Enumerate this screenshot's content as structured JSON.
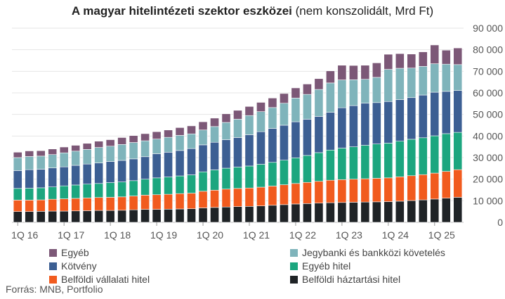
{
  "chart_data": {
    "type": "bar",
    "stacked": true,
    "title_bold": "A magyar hitelintézeti szektor eszközei",
    "title_rest": "(nem konszolidált, Mrd Ft)",
    "categories": [
      "1Q 16",
      "2Q 16",
      "3Q 16",
      "4Q 16",
      "1Q 17",
      "2Q 17",
      "3Q 17",
      "4Q 17",
      "1Q 18",
      "2Q 18",
      "3Q 18",
      "4Q 18",
      "1Q 19",
      "2Q 19",
      "3Q 19",
      "4Q 19",
      "1Q 20",
      "2Q 20",
      "3Q 20",
      "4Q 20",
      "1Q 21",
      "2Q 21",
      "3Q 21",
      "4Q 21",
      "1Q 22",
      "2Q 22",
      "3Q 22",
      "4Q 22",
      "1Q 23",
      "2Q 23",
      "3Q 23",
      "4Q 23",
      "1Q 24",
      "2Q 24",
      "3Q 24",
      "4Q 24",
      "1Q 25",
      "2Q 25",
      "3Q 25"
    ],
    "x_tick_labels": [
      "1Q 16",
      "1Q 17",
      "1Q 18",
      "1Q 19",
      "1Q 20",
      "1Q 21",
      "1Q 22",
      "1Q 23",
      "1Q 24",
      "1Q 25"
    ],
    "ylim": [
      0,
      90000
    ],
    "y_ticks": [
      "0",
      "10 000",
      "20 000",
      "30 000",
      "40 000",
      "50 000",
      "60 000",
      "70 000",
      "80 000",
      "90 000"
    ],
    "y_tick_values": [
      0,
      10000,
      20000,
      30000,
      40000,
      50000,
      60000,
      70000,
      80000,
      90000
    ],
    "y_axis_side": "right",
    "series": [
      {
        "name": "Belföldi háztartási hitel",
        "color": "#1f2326",
        "values": [
          5000,
          5000,
          5100,
          5200,
          5200,
          5300,
          5400,
          5500,
          5500,
          5600,
          5800,
          6000,
          6000,
          6100,
          6200,
          6300,
          6700,
          6900,
          7100,
          7300,
          7400,
          7600,
          7900,
          8200,
          8500,
          8700,
          8900,
          9100,
          9200,
          9300,
          9400,
          9500,
          9600,
          9800,
          10100,
          10400,
          10800,
          11200,
          11600
        ]
      },
      {
        "name": "Belföldi vállalati hitel",
        "color": "#f15b1e",
        "values": [
          5300,
          5300,
          5300,
          5500,
          5700,
          5800,
          5900,
          6000,
          6100,
          6200,
          6400,
          6600,
          6800,
          6900,
          7100,
          7200,
          7700,
          8000,
          8300,
          8400,
          8500,
          8700,
          8900,
          9200,
          9500,
          9800,
          10100,
          10400,
          10600,
          10700,
          10800,
          10900,
          11000,
          11300,
          11500,
          11700,
          12000,
          12400,
          12800
        ]
      },
      {
        "name": "Egyéb hitel",
        "color": "#1ca67f",
        "values": [
          5400,
          5500,
          5600,
          5700,
          6000,
          6200,
          6400,
          6500,
          6800,
          6900,
          7100,
          7400,
          7800,
          8000,
          8200,
          8500,
          9000,
          9400,
          9700,
          9900,
          10200,
          10600,
          11000,
          11400,
          11900,
          12500,
          13300,
          14000,
          14600,
          15000,
          15500,
          15900,
          16100,
          16500,
          16900,
          17100,
          17300,
          17500,
          17300
        ]
      },
      {
        "name": "Kötvény",
        "color": "#3c5f93",
        "values": [
          8300,
          8600,
          8600,
          8800,
          8800,
          9100,
          9300,
          9500,
          9800,
          10000,
          10100,
          10400,
          11200,
          11500,
          11800,
          12200,
          12500,
          12800,
          13200,
          13700,
          14500,
          15100,
          15700,
          16200,
          16700,
          16800,
          16800,
          17500,
          18700,
          19100,
          19500,
          19200,
          19300,
          19300,
          19300,
          19800,
          20200,
          19600,
          19400
        ]
      },
      {
        "name": "Jegybanki és bankközi követelés",
        "color": "#7fb4bb",
        "values": [
          6000,
          6100,
          6100,
          6200,
          6500,
          6600,
          6800,
          7200,
          7100,
          7400,
          7600,
          7400,
          6800,
          6900,
          7000,
          6800,
          6900,
          7300,
          8000,
          8500,
          8900,
          9300,
          9700,
          10200,
          11000,
          11500,
          12500,
          13600,
          12900,
          12000,
          11100,
          11700,
          14900,
          14500,
          13700,
          13300,
          13200,
          12600,
          12000
        ]
      },
      {
        "name": "Egyéb",
        "color": "#7c5877",
        "values": [
          2500,
          2600,
          2500,
          2600,
          2700,
          2700,
          2800,
          2900,
          3000,
          3200,
          3200,
          3300,
          3400,
          3400,
          3600,
          3700,
          3800,
          3900,
          4000,
          4100,
          4200,
          4300,
          4400,
          4500,
          4700,
          4800,
          5000,
          5600,
          6800,
          6600,
          6500,
          6700,
          7000,
          6800,
          6500,
          6700,
          8700,
          6500,
          7700
        ]
      }
    ],
    "legend_position": "bottom"
  },
  "source": "Forrás: MNB, Portfolio"
}
